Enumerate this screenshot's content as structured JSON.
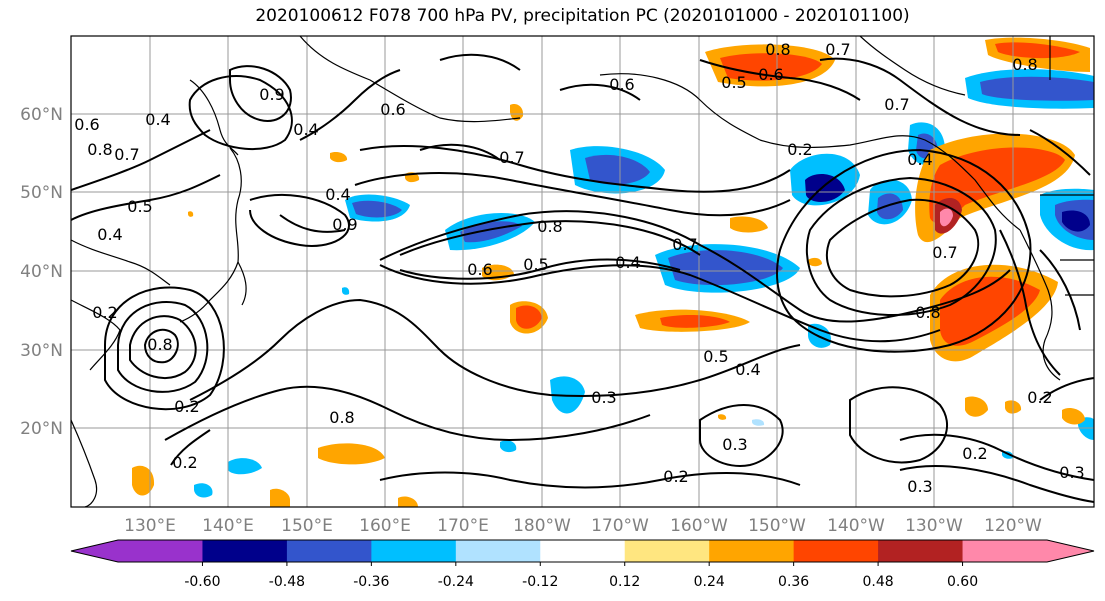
{
  "title": "2020100612 F078 700 hPa PV, precipitation PC (2020101000 - 2020101100)",
  "map": {
    "lat_labels": [
      "60°N",
      "50°N",
      "40°N",
      "30°N",
      "20°N"
    ],
    "lon_labels": [
      "130°E",
      "140°E",
      "150°E",
      "160°E",
      "170°E",
      "180°W",
      "170°W",
      "160°W",
      "150°W",
      "140°W",
      "130°W",
      "120°W"
    ],
    "contour_labels": [
      "0.8",
      "0.6",
      "0.7",
      "0.5",
      "0.6",
      "0.6",
      "0.4",
      "0.8",
      "0.7",
      "0.4",
      "0.7",
      "0.5",
      "0.4",
      "0.9",
      "0.9",
      "0.6",
      "0.8",
      "0.8",
      "0.7",
      "0.5",
      "0.6",
      "0.4",
      "0.8",
      "0.4",
      "0.5",
      "0.3",
      "0.2",
      "0.2",
      "0.8",
      "0.2",
      "0.2",
      "0.3",
      "0.2",
      "0.3",
      "0.3",
      "0.2",
      "0.4",
      "0.4",
      "0.2",
      "0.7",
      "0.7",
      "0.8"
    ]
  },
  "colorbar": {
    "colors": [
      "#9932cc",
      "#00008b",
      "#3355cc",
      "#00bfff",
      "#b0e2ff",
      "#ffffff",
      "#ffe680",
      "#ffa500",
      "#ff4500",
      "#b22222",
      "#ff88aa"
    ],
    "tick_labels": [
      "-0.60",
      "-0.48",
      "-0.36",
      "-0.24",
      "-0.12",
      "0.12",
      "0.24",
      "0.36",
      "0.48",
      "0.60"
    ]
  }
}
